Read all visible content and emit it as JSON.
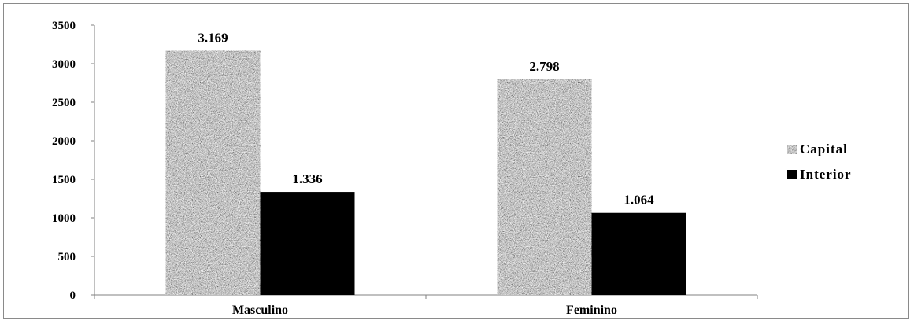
{
  "chart_data": {
    "type": "bar",
    "categories": [
      "Masculino",
      "Feminino"
    ],
    "series": [
      {
        "name": "Capital",
        "values": [
          3169,
          2798
        ],
        "labels": [
          "3.169",
          "2.798"
        ],
        "color": "#a9a9a9",
        "pattern": "granite"
      },
      {
        "name": "Interior",
        "values": [
          1336,
          1064
        ],
        "labels": [
          "1.336",
          "1.064"
        ],
        "color": "#000000"
      }
    ],
    "ylim": [
      0,
      3500
    ],
    "yticks": [
      0,
      500,
      1000,
      1500,
      2000,
      2500,
      3000,
      3500
    ],
    "grid": false,
    "legend": "right"
  }
}
